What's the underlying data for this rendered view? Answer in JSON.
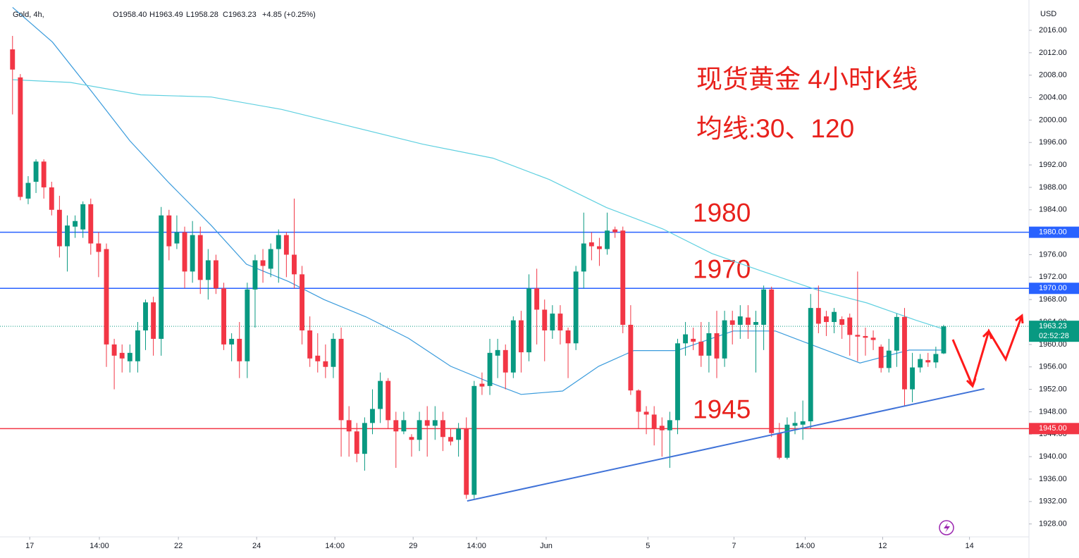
{
  "chart_data": {
    "type": "candlestick",
    "header": {
      "symbol": "Gold, 4h,",
      "items": [
        "O1958.40",
        "H1963.49",
        "L1958.28",
        "C1963.23",
        "+4.85 (+0.25%)"
      ]
    },
    "currency": "USD",
    "annotations": [
      "现货黄金 4小时K线",
      "均线:30、120"
    ],
    "up_color": "#089981",
    "down_color": "#f23645",
    "open": [
      2012.6,
      2007.6,
      1986,
      1989,
      1992.6,
      1988,
      1984,
      1977.5,
      1981,
      1980.5,
      1985,
      1978,
      1977,
      1960,
      1958.5,
      1957,
      1957,
      1962.5,
      1967.5,
      1961,
      1983,
      1978,
      1980,
      1973,
      1979.5,
      1971.5,
      1975,
      1970,
      1960,
      1961,
      1957,
      1969.8,
      1975,
      1973.5,
      1977,
      1979.5,
      1976,
      1972.5,
      1962.5,
      1958,
      1957,
      1956,
      1961,
      1946.5,
      1944.5,
      1940.5,
      1946,
      1948.5,
      1953.5,
      1946.5,
      1944.5,
      1943.5,
      1943,
      1946.5,
      1945.5,
      1946.5,
      1943.5,
      1943,
      1945,
      1933.2,
      1953,
      1952.6,
      1958,
      1959,
      1955,
      1964.3,
      1958.6,
      1970,
      1966.2,
      1962.5,
      1965.5,
      1962.5,
      1960.2,
      1973,
      1978.2,
      1977.5,
      1977,
      1980.5,
      1980.3,
      1963.5,
      1951.8,
      1948,
      1947.5,
      1945.5,
      1944.7,
      1946.5,
      1960.2,
      1961,
      1960.5,
      1958,
      1962,
      1957.5,
      1964.3,
      1963.5,
      1964.8,
      1963.5,
      1963.5,
      1969.8,
      1944.2,
      1939.8,
      1945.5,
      1945.7,
      1946.3,
      1966.5,
      1965,
      1964,
      1964.5,
      1964.8,
      1961.7,
      1961.5,
      1961.2,
      1959.6,
      1955.8,
      1958.9,
      1964.9,
      1952,
      1955.9,
      1957.2,
      1956.8,
      1958.4
    ],
    "high": [
      2015,
      2008.2,
      1990,
      1993,
      1993,
      1989,
      1986.5,
      1983,
      1983,
      1985.5,
      1986,
      1980,
      1978,
      1961,
      1960,
      1960,
      1964,
      1968,
      1968.5,
      1984.5,
      1984,
      1983,
      1981,
      1982,
      1981,
      1977,
      1976,
      1971,
      1962,
      1964,
      1971,
      1976,
      1977,
      1978,
      1980.5,
      1980,
      1986,
      1974,
      1965,
      1962,
      1960,
      1962,
      1963,
      1949,
      1946,
      1947,
      1952,
      1955,
      1954,
      1948,
      1948,
      1944,
      1948,
      1949,
      1949,
      1948,
      1945,
      1946,
      1947,
      1953.5,
      1955,
      1961,
      1961,
      1960,
      1965,
      1966,
      1972.5,
      1973.5,
      1968,
      1967,
      1967,
      1963,
      1974,
      1983.5,
      1980,
      1979,
      1983.5,
      1981,
      1981,
      1967,
      1952,
      1949,
      1949,
      1947,
      1948,
      1961,
      1964,
      1963,
      1964,
      1964,
      1966,
      1966,
      1966,
      1967,
      1967,
      1966,
      1970.5,
      1970.3,
      1946,
      1947,
      1948,
      1950,
      1969,
      1970.5,
      1966,
      1966.5,
      1965,
      1965.5,
      1973,
      1963,
      1962.5,
      1960,
      1961,
      1965.5,
      1966.5,
      1958.5,
      1958.3,
      1958.5,
      1959.6,
      1963.49
    ],
    "low": [
      2001,
      1985.7,
      1985,
      1987,
      1986,
      1983,
      1975.5,
      1973,
      1979,
      1979,
      1976,
      1972,
      1956,
      1952,
      1955,
      1955,
      1955,
      1959,
      1958,
      1958,
      1975,
      1977,
      1970,
      1971,
      1969,
      1968,
      1969,
      1959,
      1957,
      1954,
      1954,
      1963,
      1971,
      1972,
      1971,
      1972,
      1970,
      1960,
      1956,
      1955,
      1954,
      1954,
      1940,
      1940,
      1939,
      1937.5,
      1944,
      1946,
      1945,
      1938,
      1944,
      1940,
      1941,
      1940,
      1943,
      1941,
      1942,
      1940,
      1932.5,
      1932.5,
      1951,
      1951,
      1954,
      1952,
      1954,
      1955,
      1957,
      1960,
      1957,
      1961,
      1960,
      1954,
      1959,
      1970,
      1975,
      1974,
      1976,
      1979,
      1962,
      1951,
      1945,
      1944,
      1942,
      1940,
      1938,
      1944,
      1958,
      1959,
      1956,
      1955,
      1954,
      1956,
      1960,
      1961,
      1961,
      1955,
      1959,
      1943.5,
      1939.5,
      1939.5,
      1944,
      1943,
      1945,
      1962,
      1961.5,
      1962,
      1961,
      1958,
      1957,
      1958,
      1959,
      1955,
      1955,
      1956,
      1949,
      1949.7,
      1955,
      1956,
      1955.8,
      1958.28
    ],
    "close": [
      2009.0,
      1986.3,
      1988.8,
      1992.6,
      1988,
      1984,
      1977.5,
      1981.2,
      1982,
      1985,
      1978,
      1976.5,
      1960,
      1958,
      1957.5,
      1958.5,
      1962.5,
      1967.5,
      1961,
      1983,
      1977.5,
      1980,
      1973,
      1979.5,
      1971.5,
      1975,
      1970,
      1960,
      1961,
      1957,
      1969.8,
      1975,
      1974,
      1977,
      1979.5,
      1976,
      1972.5,
      1962.5,
      1957.5,
      1957,
      1956,
      1961,
      1946.5,
      1944.5,
      1940.5,
      1946,
      1948.5,
      1953.5,
      1946.5,
      1944.5,
      1946.5,
      1943,
      1946.5,
      1945.5,
      1946.5,
      1943.5,
      1942.7,
      1945,
      1933.2,
      1952.6,
      1952.5,
      1958.5,
      1959,
      1955,
      1964.3,
      1958.6,
      1970,
      1966.2,
      1962.5,
      1965.5,
      1962.5,
      1960.2,
      1973,
      1978,
      1977.5,
      1977,
      1980.3,
      1980,
      1963.5,
      1951.8,
      1948,
      1947.5,
      1945,
      1944.7,
      1946.5,
      1960.2,
      1961.8,
      1960.5,
      1958,
      1962,
      1957.5,
      1964.3,
      1963.5,
      1965,
      1963.5,
      1964,
      1969.8,
      1944.2,
      1939.8,
      1945.7,
      1946,
      1946.3,
      1966.5,
      1963.7,
      1964,
      1965.8,
      1963.5,
      1961.7,
      1961.4,
      1961.2,
      1960.8,
      1955.8,
      1958.9,
      1964.9,
      1952,
      1955.9,
      1957.4,
      1956.8,
      1958.3,
      1963.23
    ],
    "moving_averages": [
      {
        "color": "#3a9bdc",
        "x": [
          0,
          5.1,
          10.1,
          15,
          20,
          25.4,
          29.9,
          35.3,
          39.8,
          45.2,
          50.6,
          56,
          61.4,
          65,
          70.3,
          74.9,
          79.4,
          84.9,
          92.1,
          97.5,
          102.2,
          108.3,
          114.6,
          119.3
        ],
        "values": [
          2020.1,
          2013.9,
          2005.1,
          1996.3,
          1988.8,
          1981.2,
          1974.3,
          1971.2,
          1968.0,
          1964.9,
          1961.1,
          1956.1,
          1953.0,
          1951.1,
          1951.7,
          1956.1,
          1958.9,
          1958.9,
          1962.4,
          1962.4,
          1959.9,
          1956.7,
          1959.0,
          1959.0
        ]
      },
      {
        "color": "#5fd0e0",
        "x": [
          0,
          7.4,
          16.4,
          25.4,
          34.4,
          43.4,
          52.4,
          61.4,
          68.6,
          75.9,
          83.1,
          89.4,
          95.7,
          102.9,
          109.2,
          115.5,
          119.3
        ],
        "values": [
          2007.2,
          2006.7,
          2004.5,
          2004.1,
          2001.9,
          1998.8,
          1995.7,
          1993.2,
          1989.4,
          1984.4,
          1980.6,
          1976.2,
          1973.1,
          1969.7,
          1967.4,
          1964.3,
          1962.6
        ]
      }
    ],
    "trendline": {
      "color": "#3f72d8",
      "x": [
        58.1,
        124.2
      ],
      "values": [
        1932.1,
        1952.1
      ]
    },
    "levels": [
      {
        "value": 1980,
        "label": "1980.00",
        "note": "1980",
        "color": "#2962ff"
      },
      {
        "value": 1970,
        "label": "1970.00",
        "note": "1970",
        "color": "#2962ff"
      },
      {
        "value": 1945,
        "label": "1945.00",
        "note": "1945",
        "color": "#f23645"
      }
    ],
    "last_price": {
      "value": 1963.23,
      "label": "1963.23",
      "countdown": "02:52:28"
    },
    "xlim": [
      -1.6,
      129.9
    ],
    "ylim": [
      1925.7,
      2021.4
    ],
    "xticks": [
      {
        "value": 2.2,
        "label": "17"
      },
      {
        "value": 11.1,
        "label": "14:00"
      },
      {
        "value": 21.2,
        "label": "22"
      },
      {
        "value": 31.2,
        "label": "24"
      },
      {
        "value": 41.2,
        "label": "14:00"
      },
      {
        "value": 51.2,
        "label": "29"
      },
      {
        "value": 59.3,
        "label": "14:00"
      },
      {
        "value": 68.2,
        "label": "Jun"
      },
      {
        "value": 81.2,
        "label": "5"
      },
      {
        "value": 92.2,
        "label": "7"
      },
      {
        "value": 101.3,
        "label": "14:00"
      },
      {
        "value": 111.2,
        "label": "12"
      },
      {
        "value": 122.3,
        "label": "14"
      }
    ],
    "yticks": [
      {
        "value": 2016,
        "label": "2016.00"
      },
      {
        "value": 2012,
        "label": "2012.00"
      },
      {
        "value": 2008,
        "label": "2008.00"
      },
      {
        "value": 2004,
        "label": "2004.00"
      },
      {
        "value": 2000,
        "label": "2000.00"
      },
      {
        "value": 1996,
        "label": "1996.00"
      },
      {
        "value": 1992,
        "label": "1992.00"
      },
      {
        "value": 1988,
        "label": "1988.00"
      },
      {
        "value": 1984,
        "label": "1984.00"
      },
      {
        "value": 1980,
        "label": "1980.00"
      },
      {
        "value": 1976,
        "label": "1976.00"
      },
      {
        "value": 1972,
        "label": "1972.00"
      },
      {
        "value": 1968,
        "label": "1968.00"
      },
      {
        "value": 1964,
        "label": "1964.00"
      },
      {
        "value": 1960,
        "label": "1960.00"
      },
      {
        "value": 1956,
        "label": "1956.00"
      },
      {
        "value": 1952,
        "label": "1952.00"
      },
      {
        "value": 1948,
        "label": "1948.00"
      },
      {
        "value": 1944,
        "label": "1944.00"
      },
      {
        "value": 1940,
        "label": "1940.00"
      },
      {
        "value": 1936,
        "label": "1936.00"
      },
      {
        "value": 1932,
        "label": "1932.00"
      },
      {
        "value": 1928,
        "label": "1928.00"
      }
    ]
  }
}
